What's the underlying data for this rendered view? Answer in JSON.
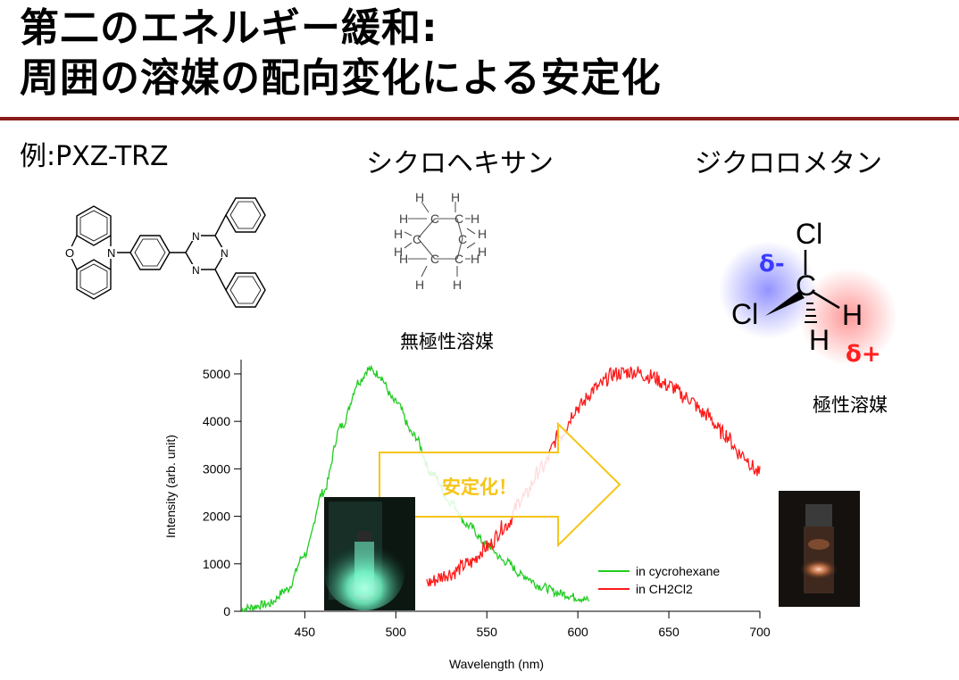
{
  "title": {
    "line1": "第二のエネルギー緩和:",
    "line2": "周囲の溶媒の配向変化による安定化"
  },
  "example_label": "例:PXZ-TRZ",
  "solvents": {
    "nonpolar": {
      "name": "シクロヘキサン",
      "type": "無極性溶媒"
    },
    "polar": {
      "name": "ジクロロメタン",
      "type": "極性溶媒"
    }
  },
  "cyclohexane_atoms": {
    "carbon": "C",
    "hydrogen": "H"
  },
  "pxz_atoms": {
    "oxygen": "O",
    "nitrogen": "N"
  },
  "dcm": {
    "cl": "Cl",
    "c": "C",
    "h": "H",
    "delta_minus": "δ-",
    "delta_plus": "δ+",
    "color_minus": "#3b3bff",
    "color_plus": "#ff2020"
  },
  "arrow": {
    "label": "安定化！",
    "color": "#f5c518"
  },
  "chart_data": {
    "type": "line",
    "xlabel": "Wavelength (nm)",
    "ylabel": "Intensity (arb. unit)",
    "xlim": [
      415,
      700
    ],
    "ylim": [
      0,
      5300
    ],
    "xticks": [
      450,
      500,
      550,
      600,
      650,
      700
    ],
    "yticks": [
      0,
      1000,
      2000,
      3000,
      4000,
      5000
    ],
    "grid": false,
    "legend_position": "bottom-right",
    "series": [
      {
        "name": "in cycrohexane",
        "color": "#22cc22",
        "x": [
          415,
          430,
          440,
          450,
          460,
          470,
          480,
          485,
          490,
          500,
          510,
          520,
          530,
          540,
          550,
          560,
          570,
          580,
          590,
          600,
          606
        ],
        "y": [
          50,
          150,
          450,
          1200,
          2500,
          3900,
          4850,
          5100,
          5000,
          4400,
          3700,
          2900,
          2300,
          1800,
          1400,
          1050,
          750,
          520,
          380,
          290,
          230
        ]
      },
      {
        "name": "in CH2Cl2",
        "color": "#ff1a1a",
        "x": [
          517,
          530,
          540,
          550,
          560,
          570,
          580,
          590,
          600,
          610,
          620,
          630,
          640,
          650,
          660,
          670,
          680,
          690,
          700
        ],
        "y": [
          600,
          800,
          1000,
          1350,
          1800,
          2400,
          3000,
          3700,
          4300,
          4700,
          5000,
          5050,
          4950,
          4750,
          4500,
          4150,
          3750,
          3300,
          2900
        ]
      }
    ]
  }
}
